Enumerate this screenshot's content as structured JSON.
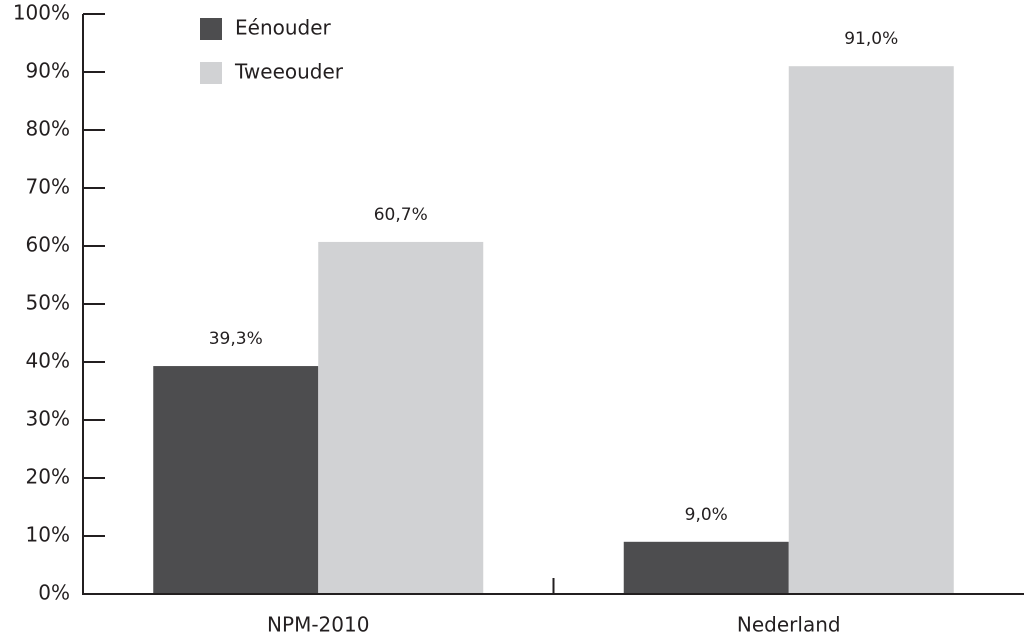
{
  "chart_data": {
    "type": "bar",
    "categories": [
      "NPM-2010",
      "Nederland"
    ],
    "series": [
      {
        "name": "Eénouder",
        "color": "#4d4d4f",
        "values": [
          39.3,
          9.0
        ],
        "value_labels": [
          "39,3%",
          "9,0%"
        ]
      },
      {
        "name": "Tweeouder",
        "color": "#d1d2d4",
        "values": [
          60.7,
          91.0
        ],
        "value_labels": [
          "60,7%",
          "91,0%"
        ]
      }
    ],
    "ylim": [
      0,
      100
    ],
    "yticks": [
      {
        "value": 0,
        "label": "0%"
      },
      {
        "value": 10,
        "label": "10%"
      },
      {
        "value": 20,
        "label": "20%"
      },
      {
        "value": 30,
        "label": "30%"
      },
      {
        "value": 40,
        "label": "40%"
      },
      {
        "value": 50,
        "label": "50%"
      },
      {
        "value": 60,
        "label": "60%"
      },
      {
        "value": 70,
        "label": "70%"
      },
      {
        "value": 80,
        "label": "80%"
      },
      {
        "value": 90,
        "label": "90%"
      },
      {
        "value": 100,
        "label": "100%"
      }
    ],
    "legend": "top-left"
  }
}
